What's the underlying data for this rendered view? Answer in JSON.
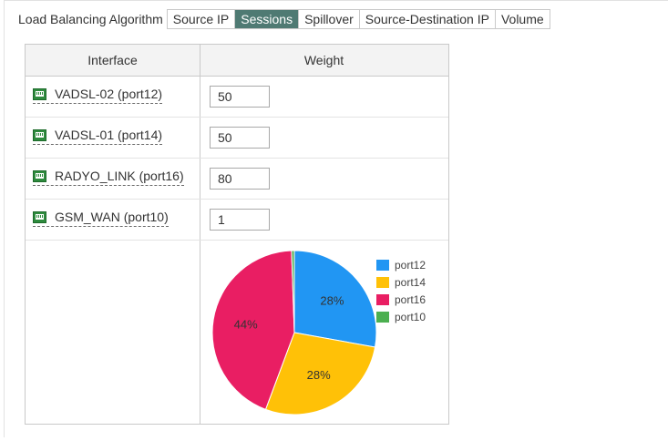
{
  "algorithm": {
    "label": "Load Balancing Algorithm",
    "tabs": [
      {
        "label": "Source IP",
        "active": false
      },
      {
        "label": "Sessions",
        "active": true
      },
      {
        "label": "Spillover",
        "active": false
      },
      {
        "label": "Source-Destination IP",
        "active": false
      },
      {
        "label": "Volume",
        "active": false
      }
    ],
    "active_color": "#4f7a73"
  },
  "table": {
    "headers": {
      "interface": "Interface",
      "weight": "Weight"
    },
    "rows": [
      {
        "interface": "VADSL-02 (port12)",
        "weight": "50",
        "icon": "network-port-icon"
      },
      {
        "interface": "VADSL-01 (port14)",
        "weight": "50",
        "icon": "network-port-icon"
      },
      {
        "interface": "RADYO_LINK (port16)",
        "weight": "80",
        "icon": "network-port-icon"
      },
      {
        "interface": "GSM_WAN (port10)",
        "weight": "1",
        "icon": "network-port-icon"
      }
    ]
  },
  "chart_data": {
    "type": "pie",
    "categories": [
      "port12",
      "port14",
      "port16",
      "port10"
    ],
    "values": [
      28,
      28,
      44,
      0.55
    ],
    "data_labels": [
      "28%",
      "28%",
      "44%",
      ""
    ],
    "colors": [
      "#2196f3",
      "#ffc107",
      "#e91e63",
      "#4caf50"
    ],
    "legend_position": "right",
    "start_angle_deg": 0
  }
}
